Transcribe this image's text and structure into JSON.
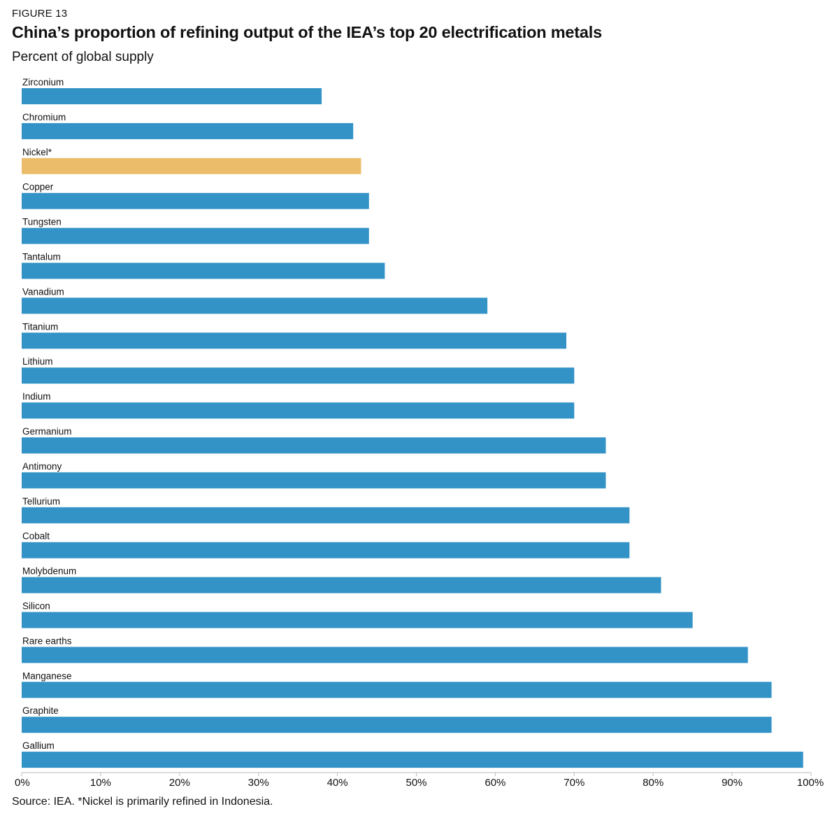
{
  "figure_label": "FIGURE 13",
  "chart_data": {
    "type": "bar",
    "orientation": "horizontal",
    "title": "China’s proportion of refining output of the IEA’s top 20 electrification metals",
    "subtitle": "Percent of global supply",
    "xlabel": "",
    "ylabel": "",
    "xlim": [
      0,
      100
    ],
    "ticks": [
      0,
      10,
      20,
      30,
      40,
      50,
      60,
      70,
      80,
      90,
      100
    ],
    "tick_labels": [
      "0%",
      "10%",
      "20%",
      "30%",
      "40%",
      "50%",
      "60%",
      "70%",
      "80%",
      "90%",
      "100%"
    ],
    "categories": [
      "Zirconium",
      "Chromium",
      "Nickel*",
      "Copper",
      "Tungsten",
      "Tantalum",
      "Vanadium",
      "Titanium",
      "Lithium",
      "Indium",
      "Germanium",
      "Antimony",
      "Tellurium",
      "Cobalt",
      "Molybdenum",
      "Silicon",
      "Rare earths",
      "Manganese",
      "Graphite",
      "Gallium"
    ],
    "values": [
      38,
      42,
      43,
      44,
      44,
      46,
      59,
      69,
      70,
      70,
      74,
      74,
      77,
      77,
      81,
      85,
      92,
      95,
      95,
      99
    ],
    "highlight": [
      "Nickel*"
    ],
    "colors": {
      "default": "#3393c6",
      "highlight": "#ebbd6b",
      "axis": "#bbbbbb"
    }
  },
  "source_note": "Source: IEA. *Nickel is primarily refined in Indonesia."
}
